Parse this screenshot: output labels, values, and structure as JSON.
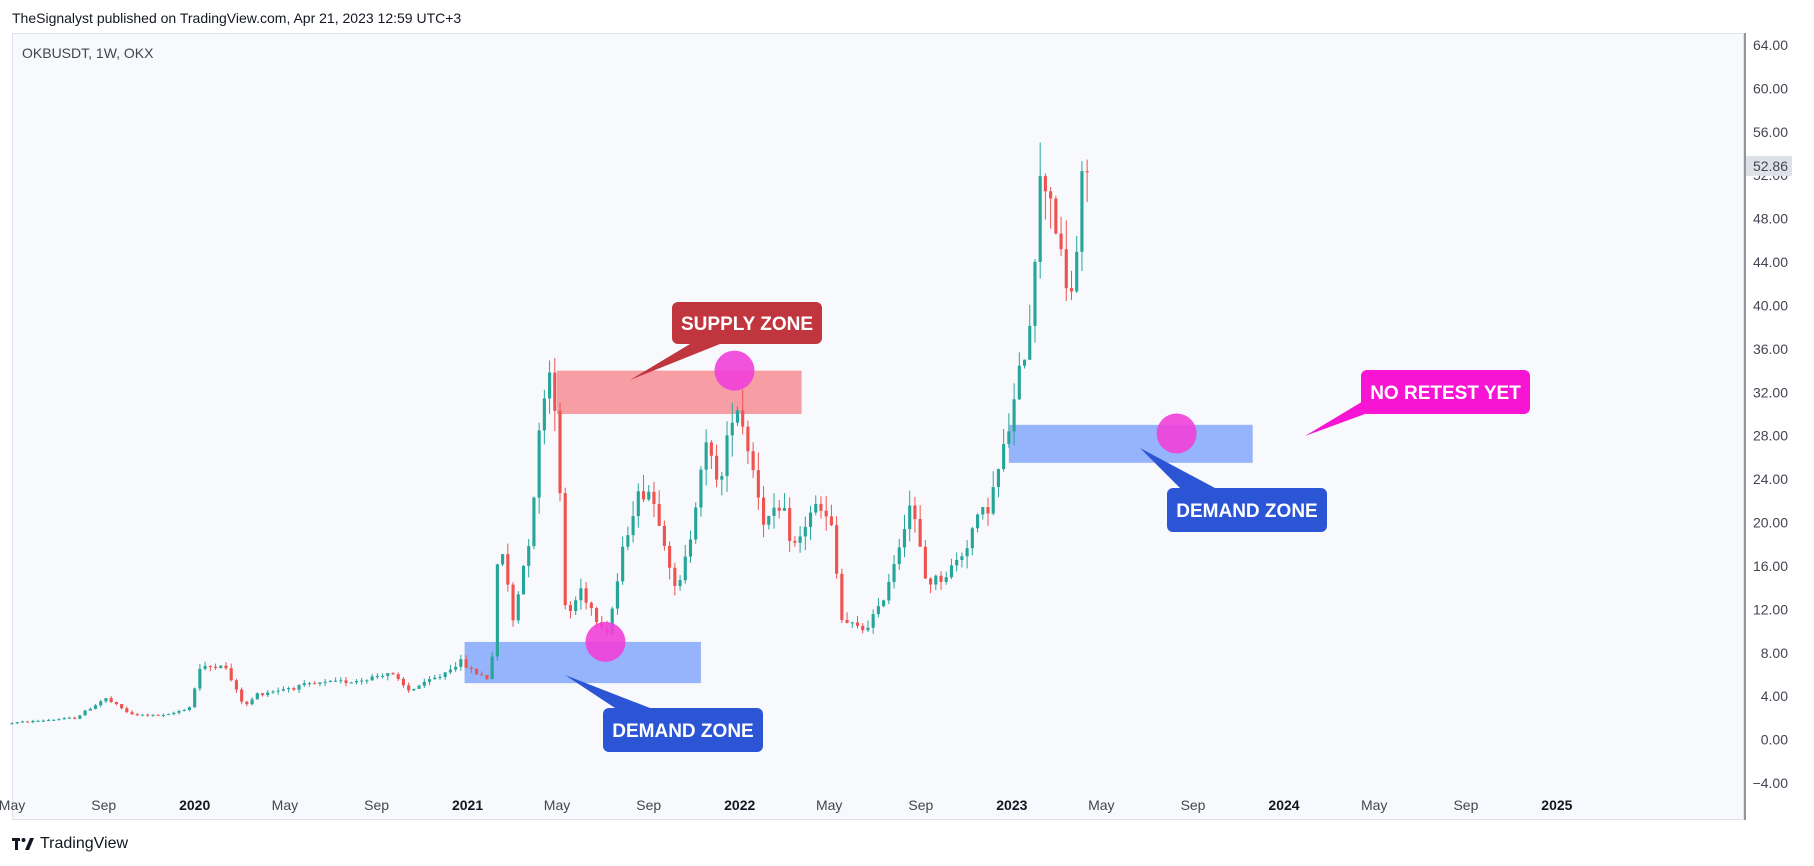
{
  "header": {
    "publish_line": "TheSignalyst published on TradingView.com, Apr 21, 2023 12:59 UTC+3"
  },
  "symbol_label": "OKBUSDT, 1W, OKX",
  "footer": {
    "brand": "TradingView"
  },
  "colors": {
    "up": "#26a69a",
    "down": "#ef5350",
    "supply": "#f7989f",
    "demand": "#8fb0fb",
    "supply_label": "#c1353f",
    "demand_label": "#2c55d5",
    "retest_label": "#f714d2",
    "marker": "#f040d8"
  },
  "chart_data": {
    "type": "candlestick",
    "symbol": "OKBUSDT",
    "interval": "1W",
    "exchange": "OKX",
    "last_price": "52.86",
    "y_axis": {
      "ticks": [
        "64.00",
        "60.00",
        "56.00",
        "52.00",
        "48.00",
        "44.00",
        "40.00",
        "36.00",
        "32.00",
        "28.00",
        "24.00",
        "20.00",
        "16.00",
        "12.00",
        "8.00",
        "4.00",
        "0.00",
        "−4.00"
      ],
      "range": [
        -4,
        64
      ]
    },
    "x_axis": {
      "range": [
        "2019-05-01",
        "2025-02-01"
      ],
      "ticks": [
        {
          "label": "May",
          "date": "2019-05-01",
          "bold": false
        },
        {
          "label": "Sep",
          "date": "2019-09-01",
          "bold": false
        },
        {
          "label": "2020",
          "date": "2020-01-01",
          "bold": true
        },
        {
          "label": "May",
          "date": "2020-05-01",
          "bold": false
        },
        {
          "label": "Sep",
          "date": "2020-09-01",
          "bold": false
        },
        {
          "label": "2021",
          "date": "2021-01-01",
          "bold": true
        },
        {
          "label": "May",
          "date": "2021-05-01",
          "bold": false
        },
        {
          "label": "Sep",
          "date": "2021-09-01",
          "bold": false
        },
        {
          "label": "2022",
          "date": "2022-01-01",
          "bold": true
        },
        {
          "label": "May",
          "date": "2022-05-01",
          "bold": false
        },
        {
          "label": "Sep",
          "date": "2022-09-01",
          "bold": false
        },
        {
          "label": "2023",
          "date": "2023-01-01",
          "bold": true
        },
        {
          "label": "May",
          "date": "2023-05-01",
          "bold": false
        },
        {
          "label": "Sep",
          "date": "2023-09-01",
          "bold": false
        },
        {
          "label": "2024",
          "date": "2024-01-01",
          "bold": true
        },
        {
          "label": "May",
          "date": "2024-05-01",
          "bold": false
        },
        {
          "label": "Sep",
          "date": "2024-09-01",
          "bold": false
        },
        {
          "label": "2025",
          "date": "2025-01-01",
          "bold": true
        }
      ]
    },
    "anchors": [
      [
        "2019-05-01",
        1.5
      ],
      [
        "2019-08-01",
        2.0
      ],
      [
        "2019-09-10",
        3.8
      ],
      [
        "2019-10-15",
        2.3
      ],
      [
        "2019-12-01",
        2.2
      ],
      [
        "2020-01-01",
        3.0
      ],
      [
        "2020-01-15",
        6.5
      ],
      [
        "2020-02-15",
        7.0
      ],
      [
        "2020-03-15",
        3.0
      ],
      [
        "2020-04-01",
        4.2
      ],
      [
        "2020-05-15",
        4.8
      ],
      [
        "2020-07-01",
        5.2
      ],
      [
        "2020-08-20",
        5.5
      ],
      [
        "2020-09-25",
        6.2
      ],
      [
        "2020-10-20",
        4.5
      ],
      [
        "2020-12-01",
        5.8
      ],
      [
        "2020-12-28",
        7.2
      ],
      [
        "2021-01-15",
        6.3
      ],
      [
        "2021-02-08",
        5.5
      ],
      [
        "2021-02-20",
        19.0
      ],
      [
        "2021-03-10",
        11.0
      ],
      [
        "2021-04-01",
        19.0
      ],
      [
        "2021-04-25",
        35.0
      ],
      [
        "2021-05-05",
        31.5
      ],
      [
        "2021-05-20",
        11.0
      ],
      [
        "2021-06-10",
        14.0
      ],
      [
        "2021-07-01",
        11.0
      ],
      [
        "2021-07-15",
        10.0
      ],
      [
        "2021-08-15",
        21.0
      ],
      [
        "2021-09-05",
        23.5
      ],
      [
        "2021-09-25",
        20.0
      ],
      [
        "2021-10-15",
        13.0
      ],
      [
        "2021-11-01",
        18.0
      ],
      [
        "2021-11-20",
        27.0
      ],
      [
        "2021-12-15",
        24.0
      ],
      [
        "2022-01-01",
        32.0
      ],
      [
        "2022-01-20",
        27.0
      ],
      [
        "2022-02-10",
        20.0
      ],
      [
        "2022-03-05",
        21.0
      ],
      [
        "2022-03-25",
        17.5
      ],
      [
        "2022-04-15",
        21.5
      ],
      [
        "2022-05-10",
        20.0
      ],
      [
        "2022-05-25",
        11.0
      ],
      [
        "2022-06-20",
        10.0
      ],
      [
        "2022-07-15",
        12.0
      ],
      [
        "2022-08-01",
        16.0
      ],
      [
        "2022-08-25",
        22.0
      ],
      [
        "2022-09-15",
        14.5
      ],
      [
        "2022-10-10",
        15.0
      ],
      [
        "2022-11-01",
        17.0
      ],
      [
        "2022-11-20",
        20.0
      ],
      [
        "2022-12-10",
        22.0
      ],
      [
        "2022-12-28",
        26.5
      ],
      [
        "2023-01-15",
        32.0
      ],
      [
        "2023-02-01",
        39.0
      ],
      [
        "2023-02-15",
        51.0
      ],
      [
        "2023-02-25",
        52.0
      ],
      [
        "2023-03-10",
        47.0
      ],
      [
        "2023-03-20",
        41.0
      ],
      [
        "2023-04-01",
        42.0
      ],
      [
        "2023-04-15",
        52.9
      ]
    ],
    "zones": [
      {
        "kind": "supply",
        "top": 34.0,
        "bottom": 30.0,
        "start": "2021-05-01",
        "end": "2022-03-25"
      },
      {
        "kind": "demand",
        "top": 9.0,
        "bottom": 5.2,
        "start": "2020-12-28",
        "end": "2021-11-10"
      },
      {
        "kind": "demand",
        "top": 29.0,
        "bottom": 25.5,
        "start": "2022-12-28",
        "end": "2023-11-20"
      }
    ],
    "markers": [
      {
        "date": "2021-07-05",
        "price": 9.0
      },
      {
        "date": "2021-12-25",
        "price": 34.0
      },
      {
        "date": "2023-08-10",
        "price": 28.2
      }
    ],
    "annotations": [
      {
        "text": "SUPPLY ZONE",
        "kind": "supply"
      },
      {
        "text": "DEMAND ZONE",
        "kind": "demand"
      },
      {
        "text": "DEMAND ZONE",
        "kind": "demand"
      },
      {
        "text": "NO RETEST YET",
        "kind": "retest"
      }
    ]
  }
}
